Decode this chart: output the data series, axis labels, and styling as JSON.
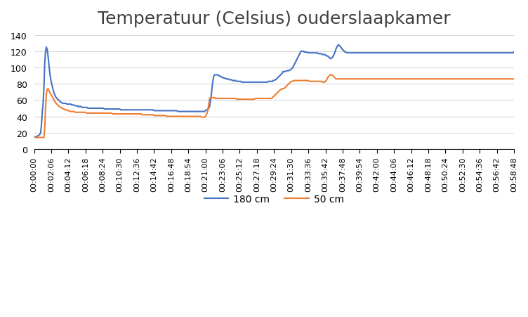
{
  "title": "Temperatuur (Celsius) ouderslaapkamer",
  "title_fontsize": 18,
  "line_180cm_color": "#4472C4",
  "line_50cm_color": "#ED7D31",
  "legend_labels": [
    "180 cm",
    "50 cm"
  ],
  "ylim": [
    0,
    140
  ],
  "yticks": [
    0,
    20,
    40,
    60,
    80,
    100,
    120,
    140
  ],
  "background_color": "#ffffff",
  "grid_color": "#d9d9d9",
  "xtick_labels": [
    "00:00:00",
    "00:02:06",
    "00:04:12",
    "00:06:18",
    "00:08:24",
    "00:10:30",
    "00:12:36",
    "00:14:42",
    "00:16:48",
    "00:18:54",
    "00:21:00",
    "00:23:06",
    "00:25:12",
    "00:27:18",
    "00:29:24",
    "00:31:30",
    "00:33:36",
    "00:35:42",
    "00:37:48",
    "00:39:54",
    "00:42:00",
    "00:44:06",
    "00:46:12",
    "00:48:18",
    "00:50:24",
    "00:52:30",
    "00:54:36",
    "00:56:42",
    "00:58:48"
  ],
  "xtick_interval_seconds": 126,
  "total_seconds": 3528,
  "values_180cm": [
    15,
    15,
    15,
    15,
    16,
    16,
    17,
    18,
    20,
    30,
    45,
    55,
    75,
    105,
    120,
    125,
    122,
    115,
    105,
    95,
    88,
    82,
    78,
    74,
    70,
    67,
    65,
    63,
    62,
    61,
    60,
    59,
    58,
    57,
    57,
    56,
    56,
    56,
    56,
    56,
    55,
    55,
    55,
    55,
    55,
    55,
    54,
    54,
    54,
    54,
    53,
    53,
    53,
    53,
    52,
    52,
    52,
    52,
    52,
    51,
    51,
    51,
    51,
    51,
    51,
    51,
    50,
    50,
    50,
    50,
    50,
    50,
    50,
    50,
    50,
    50,
    50,
    50,
    50,
    50,
    50,
    50,
    50,
    50,
    50,
    50,
    49,
    49,
    49,
    49,
    49,
    49,
    49,
    49,
    49,
    49,
    49,
    49,
    49,
    49,
    49,
    49,
    49,
    49,
    49,
    49,
    48,
    48,
    48,
    48,
    48,
    48,
    48,
    48,
    48,
    48,
    48,
    48,
    48,
    48,
    48,
    48,
    48,
    48,
    48,
    48,
    48,
    48,
    48,
    48,
    48,
    48,
    48,
    48,
    48,
    48,
    48,
    48,
    48,
    48,
    48,
    48,
    48,
    48,
    48,
    48,
    48,
    47,
    47,
    47,
    47,
    47,
    47,
    47,
    47,
    47,
    47,
    47,
    47,
    47,
    47,
    47,
    47,
    47,
    47,
    47,
    47,
    47,
    47,
    47,
    47,
    47,
    47,
    47,
    47,
    47,
    46,
    46,
    46,
    46,
    46,
    46,
    46,
    46,
    46,
    46,
    46,
    46,
    46,
    46,
    46,
    46,
    46,
    46,
    46,
    46,
    46,
    46,
    46,
    46,
    46,
    46,
    46,
    46,
    46,
    46,
    46,
    46,
    46,
    46,
    47,
    48,
    48,
    49,
    50,
    52,
    58,
    65,
    75,
    83,
    89,
    91,
    91,
    91,
    91,
    91,
    90,
    90,
    89,
    89,
    88,
    88,
    87,
    87,
    87,
    86,
    86,
    86,
    86,
    85,
    85,
    85,
    85,
    84,
    84,
    84,
    84,
    84,
    83,
    83,
    83,
    83,
    83,
    83,
    82,
    82,
    82,
    82,
    82,
    82,
    82,
    82,
    82,
    82,
    82,
    82,
    82,
    82,
    82,
    82,
    82,
    82,
    82,
    82,
    82,
    82,
    82,
    82,
    82,
    82,
    82,
    82,
    82,
    82,
    82,
    82,
    82,
    83,
    83,
    83,
    83,
    83,
    83,
    84,
    84,
    85,
    85,
    86,
    87,
    88,
    89,
    90,
    91,
    92,
    93,
    95,
    95,
    95,
    95,
    96,
    96,
    96,
    96,
    97,
    97,
    98,
    99,
    100,
    102,
    104,
    106,
    108,
    110,
    112,
    114,
    116,
    118,
    120,
    120,
    120,
    120,
    119,
    119,
    119,
    119,
    118,
    118,
    118,
    118,
    118,
    118,
    118,
    118,
    118,
    118,
    118,
    118,
    118,
    117,
    117,
    117,
    117,
    117,
    116,
    116,
    116,
    116,
    115,
    115,
    114,
    114,
    113,
    112,
    111,
    111,
    112,
    113,
    115,
    117,
    120,
    123,
    125,
    127,
    128,
    127,
    126,
    125,
    123,
    122,
    121,
    120,
    119,
    119,
    118,
    118,
    118,
    118,
    118,
    118,
    118,
    118,
    118,
    118,
    118,
    118,
    118,
    118,
    118,
    118,
    118,
    118,
    118,
    118,
    118,
    118,
    118,
    118,
    118,
    118,
    118,
    118,
    118,
    118,
    118,
    118,
    118,
    118,
    118,
    118,
    118,
    118,
    118,
    118,
    118,
    118,
    118,
    118,
    118,
    118,
    118,
    118,
    118,
    118,
    118,
    118,
    118,
    118,
    118,
    118,
    118,
    118,
    118,
    118,
    118,
    118,
    118,
    118,
    118,
    118,
    118,
    118,
    118,
    118,
    118,
    118,
    118,
    118,
    118,
    118,
    118,
    118,
    118,
    118,
    118,
    118,
    118,
    118,
    118,
    118,
    118,
    118,
    118,
    118,
    118,
    118,
    118,
    118,
    118,
    118,
    118,
    118,
    118,
    118,
    118,
    118,
    118,
    118,
    118,
    118,
    118,
    118,
    118,
    118,
    118,
    118,
    118,
    118,
    118,
    118,
    118,
    118,
    118,
    118,
    118,
    118,
    118,
    118,
    118,
    118,
    118,
    118,
    118,
    118,
    118,
    118,
    118,
    118,
    118,
    118,
    118,
    118,
    118,
    118,
    118,
    118,
    118,
    118,
    118,
    118,
    118,
    118,
    118,
    118,
    118,
    118,
    118,
    118,
    118,
    118,
    118,
    118,
    118,
    118,
    118,
    118,
    118,
    118,
    118,
    118,
    118,
    118,
    118,
    118,
    118,
    118,
    118,
    118,
    118,
    118,
    118,
    118,
    118,
    118,
    118,
    118,
    118,
    118,
    118,
    118,
    118,
    118,
    118,
    118,
    118,
    118,
    118,
    118,
    118,
    118,
    118,
    118,
    118,
    118,
    118,
    118,
    118,
    118,
    118,
    119
  ],
  "values_50cm": [
    14,
    14,
    14,
    14,
    14,
    14,
    14,
    14,
    14,
    14,
    14,
    14,
    14,
    25,
    50,
    68,
    73,
    74,
    72,
    70,
    68,
    66,
    65,
    63,
    61,
    59,
    57,
    56,
    55,
    54,
    53,
    52,
    51,
    51,
    50,
    50,
    49,
    49,
    48,
    48,
    48,
    47,
    47,
    47,
    46,
    46,
    46,
    46,
    46,
    46,
    45,
    45,
    45,
    45,
    45,
    45,
    45,
    45,
    45,
    45,
    45,
    45,
    45,
    45,
    44,
    44,
    44,
    44,
    44,
    44,
    44,
    44,
    44,
    44,
    44,
    44,
    44,
    44,
    44,
    44,
    44,
    44,
    44,
    44,
    44,
    44,
    44,
    44,
    44,
    44,
    44,
    44,
    44,
    44,
    44,
    44,
    43,
    43,
    43,
    43,
    43,
    43,
    43,
    43,
    43,
    43,
    43,
    43,
    43,
    43,
    43,
    43,
    43,
    43,
    43,
    43,
    43,
    43,
    43,
    43,
    43,
    43,
    43,
    43,
    43,
    43,
    43,
    43,
    43,
    43,
    43,
    43,
    42,
    42,
    42,
    42,
    42,
    42,
    42,
    42,
    42,
    42,
    42,
    42,
    42,
    42,
    42,
    41,
    41,
    41,
    41,
    41,
    41,
    41,
    41,
    41,
    41,
    41,
    41,
    41,
    41,
    41,
    40,
    40,
    40,
    40,
    40,
    40,
    40,
    40,
    40,
    40,
    40,
    40,
    40,
    40,
    40,
    40,
    40,
    40,
    40,
    40,
    40,
    40,
    40,
    40,
    40,
    40,
    40,
    40,
    40,
    40,
    40,
    40,
    40,
    40,
    40,
    40,
    40,
    40,
    40,
    40,
    40,
    40,
    40,
    39,
    39,
    39,
    39,
    39,
    40,
    42,
    44,
    48,
    55,
    62,
    63,
    63,
    63,
    63,
    63,
    63,
    62,
    62,
    62,
    62,
    62,
    62,
    62,
    62,
    62,
    62,
    62,
    62,
    62,
    62,
    62,
    62,
    62,
    62,
    62,
    62,
    62,
    62,
    62,
    62,
    62,
    62,
    61,
    61,
    61,
    61,
    61,
    61,
    61,
    61,
    61,
    61,
    61,
    61,
    61,
    61,
    61,
    61,
    61,
    61,
    61,
    61,
    61,
    61,
    61,
    62,
    62,
    62,
    62,
    62,
    62,
    62,
    62,
    62,
    62,
    62,
    62,
    62,
    62,
    62,
    62,
    62,
    62,
    62,
    62,
    62,
    63,
    64,
    65,
    66,
    67,
    68,
    69,
    70,
    71,
    72,
    73,
    73,
    74,
    74,
    74,
    75,
    76,
    77,
    78,
    79,
    80,
    81,
    82,
    83,
    83,
    83,
    84,
    84,
    84,
    84,
    84,
    84,
    84,
    84,
    84,
    84,
    84,
    84,
    84,
    84,
    84,
    84,
    84,
    84,
    84,
    83,
    83,
    83,
    83,
    83,
    83,
    83,
    83,
    83,
    83,
    83,
    83,
    83,
    83,
    83,
    83,
    82,
    82,
    82,
    82,
    83,
    84,
    86,
    88,
    89,
    90,
    91,
    91,
    91,
    90,
    89,
    88,
    87,
    86,
    86,
    86,
    86,
    86,
    86,
    86,
    86,
    86,
    86,
    86,
    86,
    86,
    86,
    86,
    86,
    86,
    86,
    86,
    86,
    86,
    86,
    86,
    86,
    86,
    86,
    86,
    86,
    86,
    86,
    86,
    86,
    86,
    86,
    86,
    86,
    86,
    86,
    86,
    86,
    86,
    86,
    86,
    86,
    86,
    86,
    86,
    86,
    86,
    86,
    86,
    86,
    86,
    86,
    86,
    86,
    86,
    86,
    86,
    86,
    86,
    86,
    86,
    86,
    86,
    86,
    86,
    86,
    86,
    86,
    86,
    86,
    86,
    86,
    86,
    86,
    86,
    86,
    86,
    86,
    86,
    86,
    86,
    86,
    86,
    86,
    86,
    86,
    86,
    86,
    86,
    86,
    86,
    86,
    86,
    86,
    86,
    86,
    86,
    86,
    86,
    86,
    86,
    86,
    86,
    86,
    86,
    86,
    86,
    86,
    86,
    86,
    86,
    86,
    86,
    86,
    86,
    86,
    86,
    86,
    86,
    86,
    86,
    86,
    86,
    86,
    86,
    86,
    86,
    86,
    86,
    86,
    86,
    86,
    86,
    86,
    86,
    86,
    86,
    86,
    86,
    86,
    86,
    86,
    86,
    86,
    86,
    86,
    86,
    86,
    86,
    86,
    86,
    86,
    86,
    86,
    86,
    86,
    86,
    86,
    86,
    86,
    86,
    86,
    86,
    86,
    86,
    86,
    86,
    86,
    86,
    86,
    86,
    86,
    86,
    86,
    86,
    86,
    86,
    86,
    86,
    86,
    86,
    86,
    86,
    86,
    86,
    86,
    86,
    86,
    86,
    86,
    86,
    86,
    86,
    86,
    86,
    86,
    86,
    86,
    86,
    86,
    86,
    86,
    86,
    86,
    86,
    86,
    86,
    86,
    86,
    86,
    86,
    86,
    86,
    86,
    86,
    86,
    86
  ]
}
